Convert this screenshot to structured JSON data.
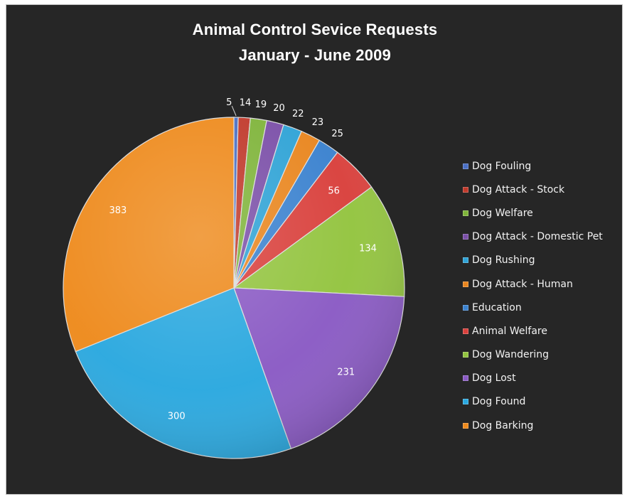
{
  "chart_data": {
    "type": "pie",
    "title": "Animal Control Sevice Requests",
    "subtitle": "January - June 2009",
    "legend_position": "right",
    "slices": [
      {
        "label": "Dog Fouling",
        "value": 5,
        "color": "#4a6fc4"
      },
      {
        "label": "Dog Attack - Stock",
        "value": 14,
        "color": "#c0392b"
      },
      {
        "label": "Dog Welfare",
        "value": 19,
        "color": "#7fb43a"
      },
      {
        "label": "Dog Attack - Domestic Pet",
        "value": 20,
        "color": "#7b4fa8"
      },
      {
        "label": "Dog Rushing",
        "value": 22,
        "color": "#2fa3d6"
      },
      {
        "label": "Dog Attack - Human",
        "value": 23,
        "color": "#e9861f"
      },
      {
        "label": "Education",
        "value": 25,
        "color": "#3b82cf"
      },
      {
        "label": "Animal Welfare",
        "value": 56,
        "color": "#d9403c"
      },
      {
        "label": "Dog Wandering",
        "value": 134,
        "color": "#93c43f"
      },
      {
        "label": "Dog Lost",
        "value": 231,
        "color": "#8a5ac4"
      },
      {
        "label": "Dog Found",
        "value": 300,
        "color": "#2aa8df"
      },
      {
        "label": "Dog Barking",
        "value": 383,
        "color": "#ee8a1c"
      }
    ]
  }
}
